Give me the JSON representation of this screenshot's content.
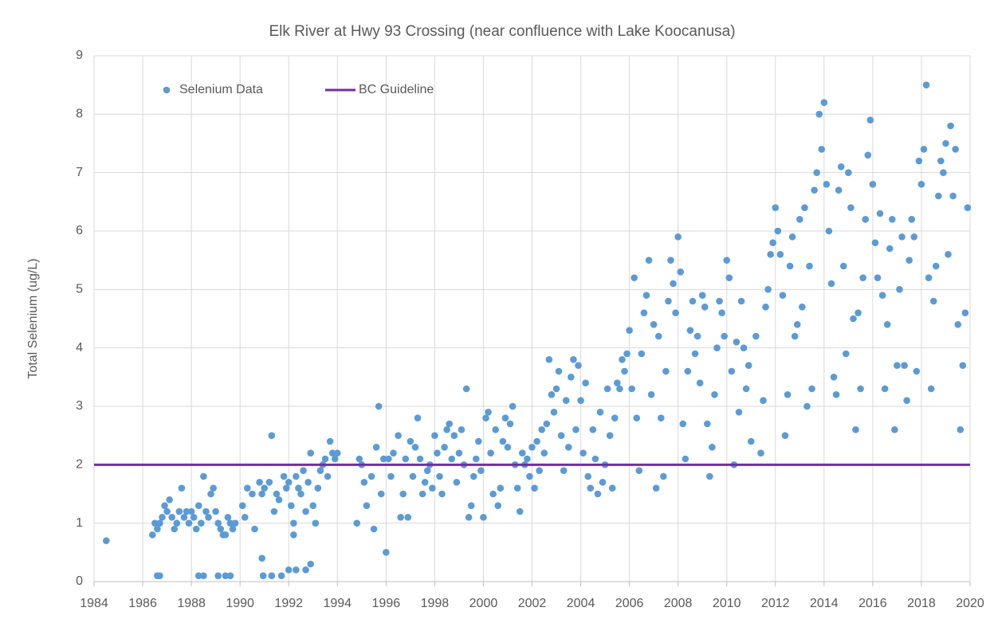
{
  "chart_data": {
    "type": "scatter",
    "title": "Elk River at Hwy 93 Crossing (near confluence with Lake Koocanusa)",
    "y_label": "Total Selenium (ug/L)",
    "xlim": [
      1984,
      2020
    ],
    "xticks": [
      1984,
      1986,
      1988,
      1990,
      1992,
      1994,
      1996,
      1998,
      2000,
      2002,
      2004,
      2006,
      2008,
      2010,
      2012,
      2014,
      2016,
      2018,
      2020
    ],
    "ylim": [
      0,
      9
    ],
    "yticks": [
      0,
      1,
      2,
      3,
      4,
      5,
      6,
      7,
      8,
      9
    ],
    "grid": true,
    "legend": "upper left",
    "series": [
      {
        "name": "Selenium Data",
        "color": "#5b9bd5",
        "type": "scatter",
        "x": [
          1984.5,
          1986.4,
          1986.5,
          1986.6,
          1986.7,
          1986.8,
          1986.9,
          1987.0,
          1987.1,
          1987.2,
          1987.3,
          1987.4,
          1987.5,
          1987.6,
          1987.7,
          1987.8,
          1987.9,
          1988.0,
          1988.1,
          1988.2,
          1988.3,
          1988.4,
          1988.5,
          1988.6,
          1988.7,
          1988.8,
          1988.9,
          1989.0,
          1989.1,
          1989.2,
          1989.3,
          1989.4,
          1989.5,
          1989.6,
          1989.7,
          1989.8,
          1986.6,
          1986.7,
          1988.3,
          1988.5,
          1989.1,
          1989.4,
          1989.6,
          1990.1,
          1990.2,
          1990.3,
          1990.5,
          1990.6,
          1990.8,
          1990.9,
          1991.0,
          1991.2,
          1991.3,
          1991.4,
          1991.5,
          1991.6,
          1991.8,
          1991.9,
          1992.0,
          1992.1,
          1992.2,
          1992.3,
          1992.4,
          1992.5,
          1992.6,
          1992.7,
          1992.8,
          1992.9,
          1993.0,
          1993.1,
          1993.2,
          1993.3,
          1993.4,
          1993.5,
          1993.6,
          1993.7,
          1993.8,
          1993.9,
          1994.0,
          1990.9,
          1990.95,
          1991.3,
          1991.7,
          1992.0,
          1992.3,
          1992.7,
          1992.9,
          1992.2,
          1994.8,
          1994.9,
          1995.0,
          1995.1,
          1995.2,
          1995.4,
          1995.5,
          1995.6,
          1995.7,
          1995.8,
          1995.9,
          1996.0,
          1996.1,
          1996.2,
          1996.3,
          1996.5,
          1996.6,
          1996.7,
          1996.8,
          1996.9,
          1997.0,
          1997.1,
          1997.2,
          1997.3,
          1997.4,
          1997.5,
          1997.6,
          1997.7,
          1997.8,
          1997.9,
          1998.0,
          1998.1,
          1998.2,
          1998.3,
          1998.4,
          1998.5,
          1998.6,
          1998.7,
          1998.8,
          1998.9,
          1999.0,
          1999.1,
          1999.2,
          1999.3,
          1999.4,
          1999.5,
          1999.6,
          1999.7,
          1999.8,
          1999.9,
          2000.0,
          2000.1,
          2000.2,
          2000.3,
          2000.4,
          2000.5,
          2000.6,
          2000.7,
          2000.8,
          2000.9,
          2001.0,
          2001.1,
          2001.2,
          2001.3,
          2001.4,
          2001.5,
          2001.6,
          2001.7,
          2001.8,
          2001.9,
          2002.0,
          2002.1,
          2002.2,
          2002.3,
          2002.4,
          2002.5,
          2002.6,
          2002.7,
          2002.8,
          2002.9,
          2003.0,
          2003.1,
          2003.2,
          2003.3,
          2003.4,
          2003.5,
          2003.6,
          2003.7,
          2003.8,
          2003.9,
          2004.0,
          2004.1,
          2004.2,
          2004.3,
          2004.4,
          2004.5,
          2004.6,
          2004.7,
          2004.8,
          2004.9,
          2005.0,
          2005.1,
          2005.2,
          2005.3,
          2005.4,
          2005.5,
          2005.6,
          2005.7,
          2005.8,
          2005.9,
          2006.0,
          2006.1,
          2006.2,
          2006.3,
          2006.4,
          2006.5,
          2006.6,
          2006.7,
          2006.8,
          2006.9,
          2007.0,
          2007.1,
          2007.2,
          2007.3,
          2007.4,
          2007.5,
          2007.6,
          2007.7,
          2007.8,
          2007.9,
          2008.0,
          2008.1,
          2008.2,
          2008.3,
          2008.4,
          2008.5,
          2008.6,
          2008.7,
          2008.8,
          2008.9,
          2009.0,
          2009.1,
          2009.2,
          2009.3,
          2009.4,
          2009.5,
          2009.6,
          2009.7,
          2009.8,
          2009.9,
          2010.0,
          2010.1,
          2010.2,
          2010.3,
          2010.4,
          2010.5,
          2010.6,
          2010.7,
          2010.8,
          2010.9,
          2011.0,
          2011.2,
          2011.4,
          2011.5,
          2011.6,
          2011.7,
          2011.8,
          2011.9,
          2012.0,
          2012.1,
          2012.2,
          2012.3,
          2012.4,
          2012.5,
          2012.6,
          2012.7,
          2012.8,
          2012.9,
          2013.0,
          2013.1,
          2013.2,
          2013.3,
          2013.4,
          2013.5,
          2013.6,
          2013.7,
          2013.8,
          2013.9,
          2014.0,
          2014.1,
          2014.2,
          2014.3,
          2014.4,
          2014.5,
          2014.6,
          2014.7,
          2014.8,
          2014.9,
          2015.0,
          2015.1,
          2015.2,
          2015.3,
          2015.4,
          2015.5,
          2015.6,
          2015.7,
          2015.8,
          2015.9,
          2016.0,
          2016.1,
          2016.2,
          2016.3,
          2016.4,
          2016.5,
          2016.6,
          2016.7,
          2016.8,
          2016.9,
          2017.0,
          2017.1,
          2017.2,
          2017.3,
          2017.4,
          2017.5,
          2017.6,
          2017.7,
          2017.8,
          2017.9,
          2018.0,
          2018.1,
          2018.2,
          2018.3,
          2018.4,
          2018.5,
          2018.6,
          2018.7,
          2018.8,
          2018.9,
          2019.0,
          2019.1,
          2019.2,
          2019.3,
          2019.4,
          2019.5,
          2019.6,
          2019.7,
          2019.8,
          2019.9
        ],
        "values": [
          0.7,
          0.8,
          1.0,
          0.9,
          1.0,
          1.1,
          1.3,
          1.2,
          1.4,
          1.1,
          0.9,
          1.0,
          1.2,
          1.6,
          1.1,
          1.2,
          1.0,
          1.2,
          1.1,
          0.9,
          1.3,
          1.0,
          1.8,
          1.2,
          1.1,
          1.5,
          1.6,
          1.2,
          1.0,
          0.9,
          0.8,
          0.8,
          1.1,
          1.0,
          0.9,
          1.0,
          0.1,
          0.1,
          0.1,
          0.1,
          0.1,
          0.1,
          0.1,
          1.3,
          1.1,
          1.6,
          1.5,
          0.9,
          1.7,
          1.5,
          1.6,
          1.7,
          2.5,
          1.2,
          1.5,
          1.4,
          1.8,
          1.6,
          1.7,
          1.3,
          1.0,
          1.8,
          1.6,
          1.5,
          1.9,
          1.2,
          1.7,
          2.2,
          1.3,
          1.0,
          1.6,
          1.9,
          2.0,
          2.1,
          1.8,
          2.4,
          2.2,
          2.1,
          2.2,
          0.4,
          0.1,
          0.1,
          0.1,
          0.2,
          0.2,
          0.2,
          0.3,
          0.8,
          1.0,
          2.1,
          2.0,
          1.7,
          1.3,
          1.8,
          0.9,
          2.3,
          3.0,
          1.5,
          2.1,
          0.5,
          2.1,
          1.8,
          2.2,
          2.5,
          1.1,
          1.5,
          2.1,
          1.1,
          2.4,
          1.8,
          2.3,
          2.8,
          2.1,
          1.5,
          1.7,
          1.9,
          2.0,
          1.6,
          2.5,
          2.2,
          1.8,
          1.5,
          2.3,
          2.6,
          2.7,
          2.1,
          2.5,
          1.7,
          2.2,
          2.6,
          2.0,
          3.3,
          1.1,
          1.3,
          1.8,
          2.1,
          2.4,
          1.9,
          1.1,
          2.8,
          2.9,
          2.2,
          1.5,
          2.6,
          1.3,
          1.6,
          2.4,
          2.8,
          2.3,
          2.7,
          3.0,
          2.0,
          1.6,
          1.2,
          2.2,
          2.0,
          2.1,
          1.8,
          2.3,
          1.6,
          2.4,
          1.9,
          2.6,
          2.2,
          2.7,
          3.8,
          3.2,
          2.9,
          3.3,
          3.6,
          2.5,
          1.9,
          3.1,
          2.3,
          3.5,
          3.8,
          2.6,
          3.7,
          3.1,
          2.2,
          3.4,
          1.8,
          1.6,
          2.6,
          2.1,
          1.5,
          2.9,
          1.7,
          2.0,
          3.3,
          2.5,
          1.6,
          2.8,
          3.4,
          3.3,
          3.8,
          3.6,
          3.9,
          4.3,
          3.3,
          5.2,
          2.8,
          1.9,
          3.9,
          4.6,
          4.9,
          5.5,
          3.2,
          4.4,
          1.6,
          4.2,
          2.8,
          1.8,
          3.6,
          4.8,
          5.5,
          5.1,
          4.6,
          5.9,
          5.3,
          2.7,
          2.1,
          3.6,
          4.3,
          4.8,
          3.9,
          4.2,
          3.4,
          4.9,
          4.7,
          2.7,
          1.8,
          2.3,
          3.2,
          4.0,
          4.8,
          4.6,
          4.2,
          5.5,
          5.2,
          3.6,
          2.0,
          4.1,
          2.9,
          4.8,
          4.0,
          3.3,
          3.7,
          2.4,
          4.2,
          2.2,
          3.1,
          4.7,
          5.0,
          5.6,
          5.8,
          6.4,
          6.0,
          5.6,
          4.9,
          2.5,
          3.2,
          5.4,
          5.9,
          4.2,
          4.4,
          6.2,
          4.7,
          6.4,
          3.0,
          5.4,
          3.3,
          6.7,
          7.0,
          8.0,
          7.4,
          8.2,
          6.8,
          6.0,
          5.1,
          3.5,
          3.2,
          6.7,
          7.1,
          5.4,
          3.9,
          7.0,
          6.4,
          4.5,
          2.6,
          4.6,
          3.3,
          5.2,
          6.2,
          7.3,
          7.9,
          6.8,
          5.8,
          5.2,
          6.3,
          4.9,
          3.3,
          4.4,
          5.7,
          6.2,
          2.6,
          3.7,
          5.0,
          5.9,
          3.7,
          3.1,
          5.5,
          6.2,
          5.9,
          3.6,
          7.2,
          6.8,
          7.4,
          8.5,
          5.2,
          3.3,
          4.8,
          5.4,
          6.6,
          7.2,
          7.0,
          7.5,
          5.6,
          7.8,
          6.6,
          7.4,
          4.4,
          2.6,
          3.7,
          4.6,
          6.4
        ]
      },
      {
        "name": "BC Guideline",
        "color": "#7030a0",
        "type": "line",
        "x": [
          1984,
          2020
        ],
        "values": [
          2,
          2
        ]
      }
    ]
  }
}
